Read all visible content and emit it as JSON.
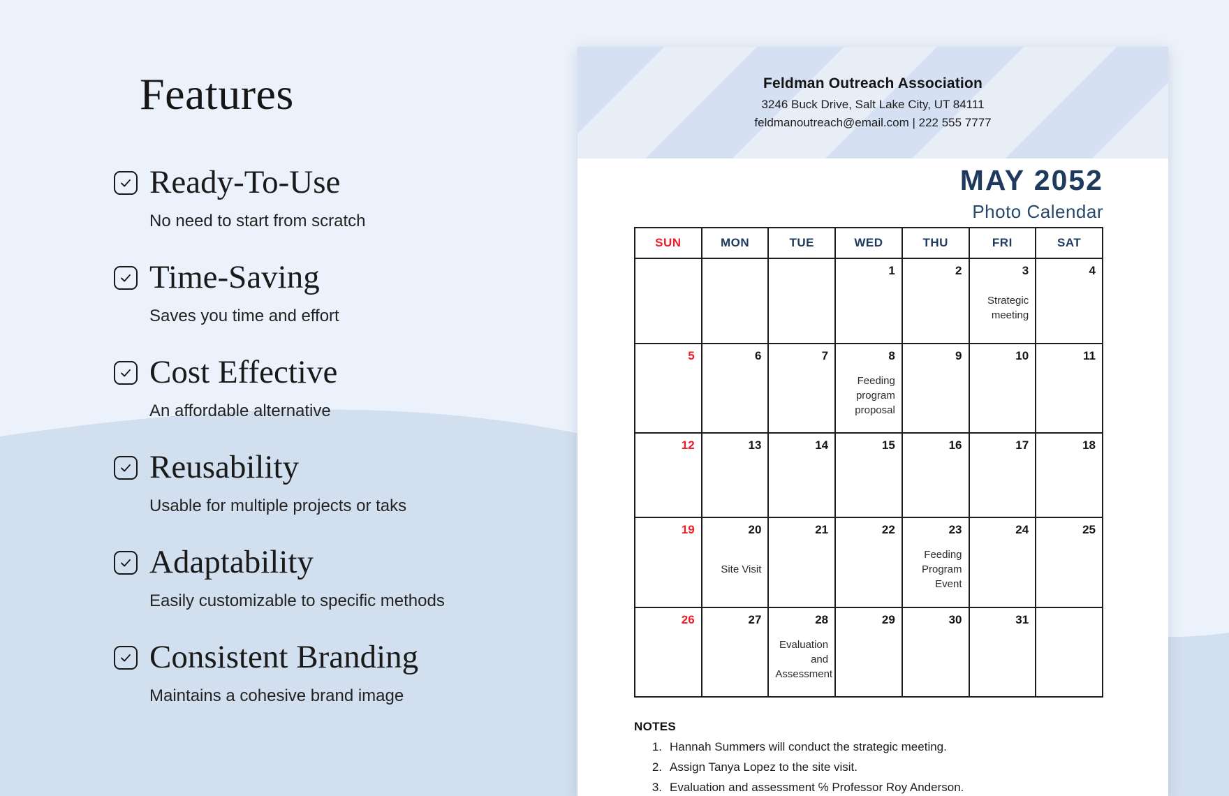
{
  "background": {
    "base_color": "#ebf2fb",
    "wave_color": "#d2dfee"
  },
  "features_panel": {
    "title": "Features",
    "items": [
      {
        "heading": "Ready-To-Use",
        "description": "No need to start from scratch"
      },
      {
        "heading": "Time-Saving",
        "description": "Saves you time and effort"
      },
      {
        "heading": "Cost Effective",
        "description": "An affordable alternative"
      },
      {
        "heading": "Reusability",
        "description": "Usable for multiple projects or taks"
      },
      {
        "heading": "Adaptability",
        "description": "Easily customizable to specific methods"
      },
      {
        "heading": "Consistent Branding",
        "description": "Maintains a cohesive brand image"
      }
    ]
  },
  "calendar_page": {
    "org": {
      "name": "Feldman Outreach Association",
      "address": "3246 Buck Drive, Salt Lake City, UT 84111",
      "contact": "feldmanoutreach@email.com | 222 555 7777"
    },
    "month_title": "MAY 2052",
    "subtitle": "Photo Calendar",
    "day_headers": [
      "SUN",
      "MON",
      "TUE",
      "WED",
      "THU",
      "FRI",
      "SAT"
    ],
    "weeks": [
      [
        {
          "day": ""
        },
        {
          "day": ""
        },
        {
          "day": ""
        },
        {
          "day": "1"
        },
        {
          "day": "2"
        },
        {
          "day": "3",
          "event_lines": [
            "Strategic",
            "meeting"
          ]
        },
        {
          "day": "4"
        }
      ],
      [
        {
          "day": "5"
        },
        {
          "day": "6"
        },
        {
          "day": "7"
        },
        {
          "day": "8",
          "event_lines": [
            "Feeding",
            "program",
            "proposal"
          ]
        },
        {
          "day": "9"
        },
        {
          "day": "10"
        },
        {
          "day": "11"
        }
      ],
      [
        {
          "day": "12"
        },
        {
          "day": "13"
        },
        {
          "day": "14"
        },
        {
          "day": "15"
        },
        {
          "day": "16"
        },
        {
          "day": "17"
        },
        {
          "day": "18"
        }
      ],
      [
        {
          "day": "19"
        },
        {
          "day": "20",
          "event_lines": [
            "Site Visit"
          ]
        },
        {
          "day": "21"
        },
        {
          "day": "22"
        },
        {
          "day": "23",
          "event_lines": [
            "Feeding",
            "Program",
            "Event"
          ]
        },
        {
          "day": "24"
        },
        {
          "day": "25"
        }
      ],
      [
        {
          "day": "26"
        },
        {
          "day": "27"
        },
        {
          "day": "28",
          "event_lines": [
            "Evaluation",
            "and",
            "Assessment"
          ]
        },
        {
          "day": "29"
        },
        {
          "day": "30"
        },
        {
          "day": "31"
        },
        {
          "day": ""
        }
      ]
    ],
    "notes": {
      "title": "NOTES",
      "items": [
        "Hannah Summers will conduct the strategic meeting.",
        "Assign Tanya Lopez to the site visit.",
        "Evaluation and assessment ℅ Professor Roy Anderson."
      ]
    },
    "colors": {
      "accent_navy": "#1e3a5c",
      "subtitle_blue": "#27496b",
      "weekday_navy": "#1d3a5f",
      "sunday_red": "#ee1c25",
      "band_blue": "#d5e1f3"
    }
  }
}
